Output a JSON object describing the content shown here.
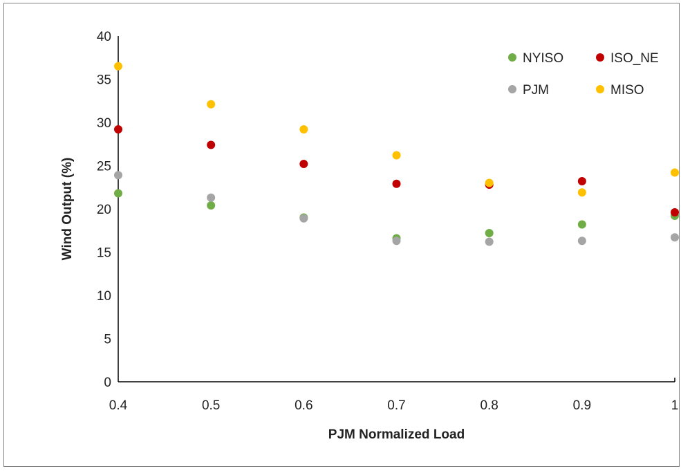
{
  "chart_data": {
    "type": "scatter",
    "title": "",
    "xlabel": "PJM Normalized Load",
    "ylabel": "Wind Output (%)",
    "xlim": [
      0.4,
      1.0
    ],
    "ylim": [
      0,
      40
    ],
    "x_ticks": [
      0.4,
      0.5,
      0.6,
      0.7,
      0.8,
      0.9,
      1.0
    ],
    "x_tick_labels": [
      "0.4",
      "0.5",
      "0.6",
      "0.7",
      "0.8",
      "0.9",
      "1"
    ],
    "y_ticks": [
      0,
      5,
      10,
      15,
      20,
      25,
      30,
      35,
      40
    ],
    "y_tick_labels": [
      "0",
      "5",
      "10",
      "15",
      "20",
      "25",
      "30",
      "35",
      "40"
    ],
    "grid": false,
    "legend_position": "top-right",
    "x": [
      0.4,
      0.5,
      0.6,
      0.7,
      0.8,
      0.9,
      1.0
    ],
    "series": [
      {
        "name": "NYISO",
        "color": "#70ad47",
        "values": [
          21.8,
          20.4,
          19.0,
          16.6,
          17.2,
          18.2,
          19.2
        ]
      },
      {
        "name": "ISO_NE",
        "color": "#c00000",
        "values": [
          29.2,
          27.4,
          25.2,
          22.9,
          22.8,
          23.2,
          19.6
        ]
      },
      {
        "name": "PJM",
        "color": "#a5a5a5",
        "values": [
          23.9,
          21.3,
          18.9,
          16.3,
          16.2,
          16.3,
          16.7
        ]
      },
      {
        "name": "MISO",
        "color": "#ffc000",
        "values": [
          36.5,
          32.1,
          29.2,
          26.2,
          23.0,
          21.9,
          24.2
        ]
      }
    ]
  }
}
